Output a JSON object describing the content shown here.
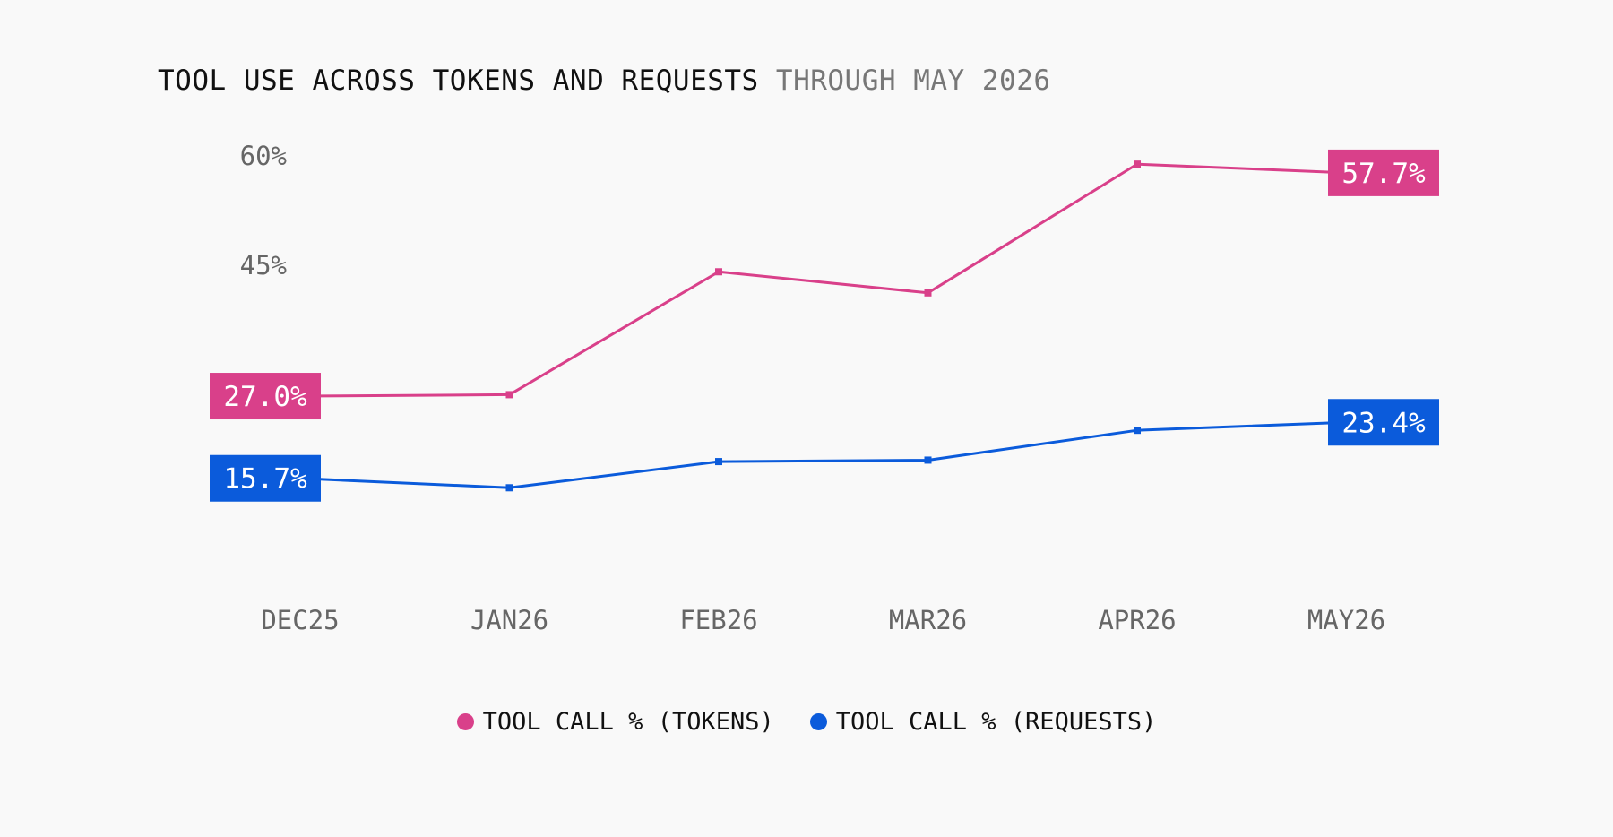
{
  "title": {
    "main": "TOOL USE ACROSS TOKENS AND REQUESTS",
    "sub": "THROUGH MAY 2026"
  },
  "colors": {
    "tokens": "#d9408a",
    "requests": "#0b5bdb",
    "axis_text": "#666666"
  },
  "chart_data": {
    "type": "line",
    "categories": [
      "DEC25",
      "JAN26",
      "FEB26",
      "MAR26",
      "APR26",
      "MAY26"
    ],
    "y_ticks": [
      {
        "value": 45,
        "label": "45%"
      },
      {
        "value": 60,
        "label": "60%"
      }
    ],
    "ylim": [
      10,
      62
    ],
    "grid": false,
    "legend_position": "bottom",
    "series": [
      {
        "name": "TOOL CALL % (TOKENS)",
        "color": "#d9408a",
        "values": [
          27.0,
          27.2,
          44.1,
          41.2,
          58.9,
          57.7
        ],
        "start_label": "27.0%",
        "end_label": "57.7%"
      },
      {
        "name": "TOOL CALL % (REQUESTS)",
        "color": "#0b5bdb",
        "values": [
          15.7,
          14.4,
          18.0,
          18.2,
          22.3,
          23.4
        ],
        "start_label": "15.7%",
        "end_label": "23.4%"
      }
    ]
  }
}
